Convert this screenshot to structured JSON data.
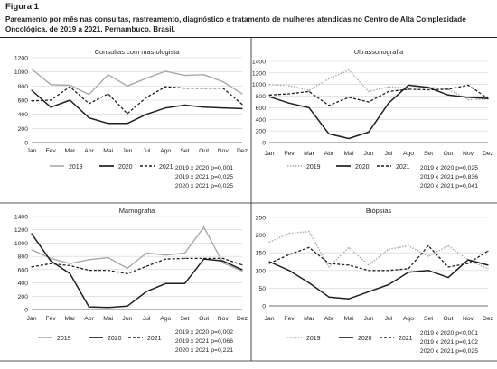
{
  "figure": {
    "label": "Figura 1",
    "caption": "Pareamento por mês nas consultas, rastreamento, diagnóstico e tratamento de mulheres atendidas no Centro de Alta Complexidade Oncológica, de 2019 a 2021, Pernambuco, Brasil."
  },
  "colors": {
    "2019": "#a7a9ac",
    "2020": "#231f20",
    "2021": "#231f20",
    "axis": "#6d6e71",
    "grid": "#d1d3d4",
    "frame": "#231f20"
  },
  "chart_data": [
    {
      "type": "line",
      "title": "Consultas com mastologista",
      "categories": [
        "Jan",
        "Fev",
        "Mar",
        "Abr",
        "Mai",
        "Jun",
        "Jul",
        "Ago",
        "Set",
        "Out",
        "Nov",
        "Dez"
      ],
      "ylim": [
        0,
        1200
      ],
      "yticks": [
        "0",
        "200",
        "400",
        "600",
        "800",
        "1000",
        "1200"
      ],
      "grid": true,
      "legend_position": "bottom",
      "series": [
        {
          "name": "2019",
          "style": "solid-gray",
          "values": [
            1040,
            820,
            810,
            680,
            960,
            800,
            910,
            1010,
            950,
            960,
            860,
            690
          ]
        },
        {
          "name": "2020",
          "style": "solid-black",
          "values": [
            740,
            500,
            600,
            350,
            270,
            270,
            400,
            490,
            530,
            500,
            490,
            480
          ]
        },
        {
          "name": "2021",
          "style": "dashed-black",
          "values": [
            590,
            600,
            790,
            550,
            690,
            410,
            640,
            790,
            770,
            770,
            770,
            540
          ]
        }
      ],
      "stats": [
        "2019 x 2020 p=0,001",
        "2019 x 2021 p=0,025",
        "2020 x 2021 p=0,025"
      ]
    },
    {
      "type": "line",
      "title": "Ultrassonografia",
      "categories": [
        "Jan",
        "Fev",
        "Mar",
        "Abr",
        "Mai",
        "Jun",
        "Jul",
        "Ago",
        "Set",
        "Out",
        "Nov",
        "Dez"
      ],
      "ylim": [
        0,
        1400
      ],
      "yticks": [
        "0",
        "200",
        "400",
        "600",
        "800",
        "1000",
        "1200",
        "1400"
      ],
      "grid": true,
      "legend_position": "bottom",
      "series": [
        {
          "name": "2019",
          "style": "dotted-gray",
          "values": [
            1000,
            980,
            900,
            1100,
            1250,
            880,
            960,
            940,
            960,
            920,
            740,
            750
          ]
        },
        {
          "name": "2020",
          "style": "solid-black",
          "values": [
            790,
            680,
            600,
            150,
            70,
            180,
            680,
            990,
            950,
            820,
            780,
            760
          ]
        },
        {
          "name": "2021",
          "style": "dashed-black",
          "values": [
            820,
            840,
            880,
            640,
            780,
            700,
            880,
            920,
            910,
            920,
            990,
            760
          ]
        }
      ],
      "stats": [
        "2019 x 2020 p=0,025",
        "2019 x 2021 p=0,836",
        "2020 x 2021 p=0,041"
      ]
    },
    {
      "type": "line",
      "title": "Mamografia",
      "categories": [
        "Jan",
        "Fev",
        "Mar",
        "Abr",
        "Mai",
        "Jun",
        "Jul",
        "Ago",
        "Set",
        "Out",
        "Nov",
        "Dez"
      ],
      "ylim": [
        0,
        1400
      ],
      "yticks": [
        "0",
        "200",
        "400",
        "600",
        "800",
        "1000",
        "1200",
        "1400"
      ],
      "grid": true,
      "legend_position": "bottom",
      "series": [
        {
          "name": "2019",
          "style": "solid-gray",
          "values": [
            900,
            770,
            690,
            750,
            780,
            620,
            850,
            820,
            850,
            1240,
            700,
            580
          ]
        },
        {
          "name": "2020",
          "style": "solid-black",
          "values": [
            1140,
            730,
            540,
            40,
            30,
            50,
            270,
            390,
            390,
            760,
            730,
            600
          ]
        },
        {
          "name": "2021",
          "style": "dashed-black",
          "values": [
            640,
            690,
            660,
            590,
            590,
            540,
            650,
            760,
            770,
            770,
            770,
            670
          ]
        }
      ],
      "stats": [
        "2019 x 2020 p=0,002",
        "2019 x 2021 p=0,066",
        "2020 x 2021 p=0,221"
      ]
    },
    {
      "type": "line",
      "title": "Biópsias",
      "categories": [
        "Jan",
        "Fev",
        "Mar",
        "Abr",
        "Mai",
        "Jun",
        "Jul",
        "Ago",
        "Set",
        "Out",
        "Nov",
        "Dez"
      ],
      "ylim": [
        0,
        250
      ],
      "yticks": [
        "0",
        "50",
        "100",
        "150",
        "200",
        "250"
      ],
      "grid": true,
      "legend_position": "bottom",
      "series": [
        {
          "name": "2019",
          "style": "dotted-gray",
          "values": [
            180,
            205,
            210,
            110,
            165,
            115,
            160,
            170,
            140,
            170,
            130,
            105
          ]
        },
        {
          "name": "2020",
          "style": "solid-black",
          "values": [
            125,
            100,
            65,
            25,
            20,
            40,
            60,
            95,
            100,
            80,
            130,
            115
          ]
        },
        {
          "name": "2021",
          "style": "dashed-black",
          "values": [
            120,
            145,
            165,
            120,
            115,
            100,
            100,
            105,
            170,
            110,
            120,
            155
          ]
        }
      ],
      "stats": [
        "2019 x 2020 p<0,001",
        "2019 x 2021 p=0,102",
        "2020 x 2021 p=0,025"
      ]
    }
  ]
}
